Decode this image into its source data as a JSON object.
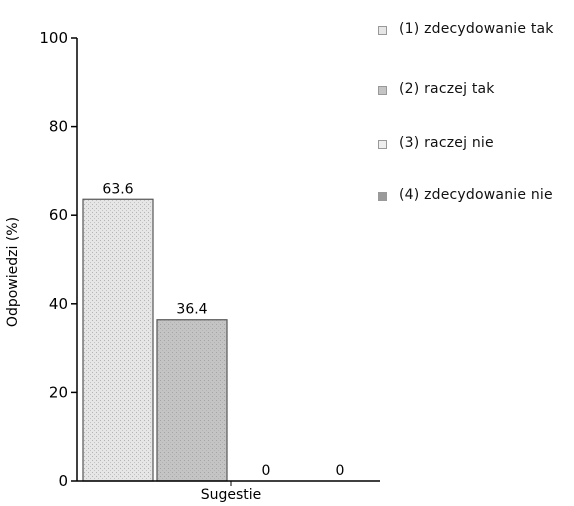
{
  "chart_data": {
    "type": "bar",
    "xlabel": "Sugestie",
    "ylabel": "Odpowiedzi (%)",
    "ylim": [
      0,
      100
    ],
    "yticks": [
      0,
      20,
      40,
      60,
      80,
      100
    ],
    "grid": false,
    "legend_position": "top-right",
    "series": [
      {
        "name": "(1) zdecydowanie tak",
        "value": 63.6,
        "label": "63.6",
        "color": "#e6e6e6"
      },
      {
        "name": "(2) raczej tak",
        "value": 36.4,
        "label": "36.4",
        "color": "#c4c4c4"
      },
      {
        "name": "(3) raczej nie",
        "value": 0,
        "label": "0",
        "color": "#eeeeee"
      },
      {
        "name": "(4) zdecydowanie nie",
        "value": 0,
        "label": "0",
        "color": "#9a9a9a"
      }
    ]
  }
}
